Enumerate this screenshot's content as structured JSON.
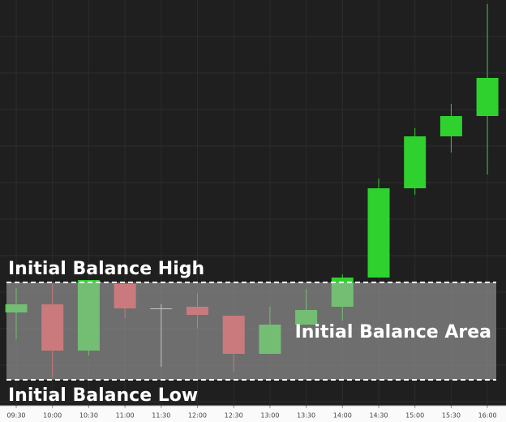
{
  "chart_data": {
    "type": "candlestick",
    "categories": [
      "09:30",
      "10:00",
      "10:30",
      "11:00",
      "11:30",
      "12:00",
      "12:30",
      "13:00",
      "13:30",
      "14:00",
      "14:30",
      "15:00",
      "15:30",
      "16:00"
    ],
    "open": [
      115,
      125,
      68,
      150,
      120,
      122,
      111,
      64,
      100,
      122,
      158,
      268,
      332,
      357
    ],
    "high": [
      145,
      150,
      155,
      150,
      125,
      138,
      111,
      122,
      144,
      162,
      280,
      342,
      372,
      495
    ],
    "low": [
      82,
      35,
      62,
      108,
      48,
      95,
      42,
      64,
      100,
      105,
      158,
      260,
      312,
      285
    ],
    "close": [
      125,
      68,
      155,
      120,
      120,
      112,
      64,
      100,
      118,
      158,
      268,
      332,
      357,
      404
    ],
    "up_color": "#2ed12e",
    "down_color": "#ea3a40",
    "ylim": [
      0,
      500
    ],
    "initial_balance": {
      "high": 152,
      "low": 32,
      "high_label": "Initial Balance High",
      "low_label": "Initial Balance Low",
      "area_label": "Initial Balance Area"
    }
  }
}
